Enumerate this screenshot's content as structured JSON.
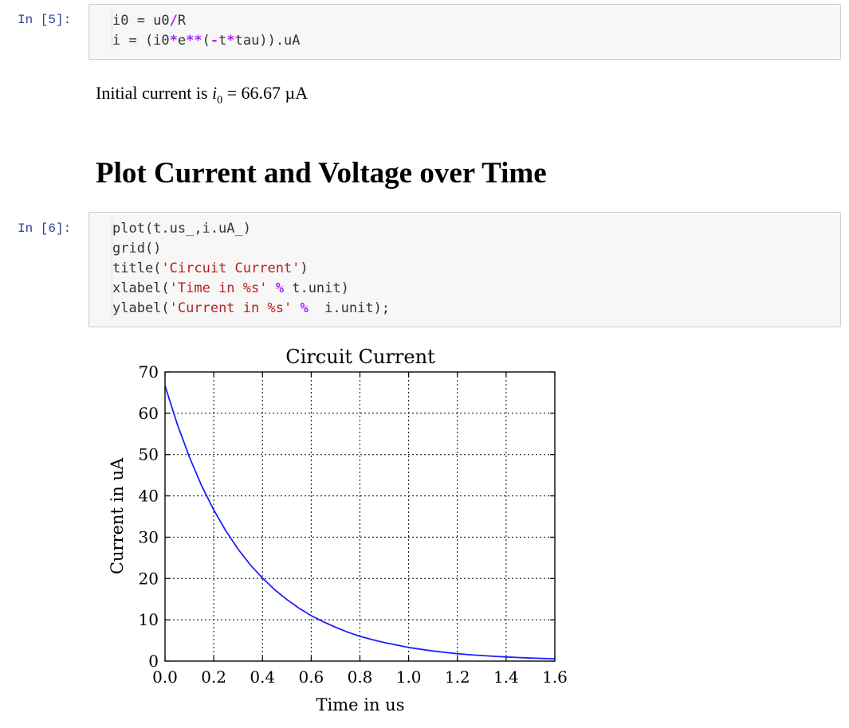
{
  "cells": [
    {
      "prompt": "In [5]:",
      "code_lines": [
        {
          "segments": [
            {
              "t": "i0 = u0",
              "c": ""
            },
            {
              "t": "/",
              "c": "tok-op"
            },
            {
              "t": "R",
              "c": ""
            }
          ]
        },
        {
          "segments": [
            {
              "t": "i = (i0",
              "c": ""
            },
            {
              "t": "*",
              "c": "tok-op"
            },
            {
              "t": "e",
              "c": ""
            },
            {
              "t": "**",
              "c": "tok-op"
            },
            {
              "t": "(",
              "c": ""
            },
            {
              "t": "-",
              "c": "tok-op"
            },
            {
              "t": "t",
              "c": ""
            },
            {
              "t": "*",
              "c": "tok-op"
            },
            {
              "t": "tau)).uA",
              "c": ""
            }
          ]
        }
      ]
    },
    {
      "prompt": "In [6]:",
      "code_lines": [
        {
          "segments": [
            {
              "t": "plot(t.us_,i.uA_)",
              "c": ""
            }
          ]
        },
        {
          "segments": [
            {
              "t": "grid()",
              "c": ""
            }
          ]
        },
        {
          "segments": [
            {
              "t": "title(",
              "c": ""
            },
            {
              "t": "'Circuit Current'",
              "c": "tok-str"
            },
            {
              "t": ")",
              "c": ""
            }
          ]
        },
        {
          "segments": [
            {
              "t": "xlabel(",
              "c": ""
            },
            {
              "t": "'Time in %s'",
              "c": "tok-str"
            },
            {
              "t": " ",
              "c": ""
            },
            {
              "t": "%",
              "c": "tok-mag"
            },
            {
              "t": " t.unit)",
              "c": ""
            }
          ]
        },
        {
          "segments": [
            {
              "t": "ylabel(",
              "c": ""
            },
            {
              "t": "'Current in %s'",
              "c": "tok-str"
            },
            {
              "t": " ",
              "c": ""
            },
            {
              "t": "%",
              "c": "tok-mag"
            },
            {
              "t": "  i.unit);",
              "c": ""
            }
          ]
        }
      ]
    }
  ],
  "output": {
    "prefix": "Initial current is ",
    "var": "i",
    "sub": "0",
    "suffix": " = 66.67 µA"
  },
  "heading": "Plot Current and Voltage over Time",
  "chart_data": {
    "type": "line",
    "title": "Circuit Current",
    "xlabel": "Time in us",
    "ylabel": "Current in uA",
    "xlim": [
      0.0,
      1.6
    ],
    "ylim": [
      0,
      70
    ],
    "xticks": [
      "0.0",
      "0.2",
      "0.4",
      "0.6",
      "0.8",
      "1.0",
      "1.2",
      "1.4",
      "1.6"
    ],
    "yticks": [
      "0",
      "10",
      "20",
      "30",
      "40",
      "50",
      "60",
      "70"
    ],
    "grid": true,
    "color": "#1f1fff",
    "series": [
      {
        "x": [
          0.0,
          0.05,
          0.1,
          0.15,
          0.2,
          0.25,
          0.3,
          0.35,
          0.4,
          0.45,
          0.5,
          0.55,
          0.6,
          0.65,
          0.7,
          0.75,
          0.8,
          0.85,
          0.9,
          0.95,
          1.0,
          1.05,
          1.1,
          1.15,
          1.2,
          1.25,
          1.3,
          1.35,
          1.4,
          1.45,
          1.5,
          1.55,
          1.6
        ],
        "y": [
          66.67,
          57.4,
          49.4,
          42.5,
          36.6,
          31.5,
          27.1,
          23.3,
          20.1,
          17.3,
          14.9,
          12.8,
          11.0,
          9.5,
          8.2,
          7.0,
          6.0,
          5.2,
          4.5,
          3.9,
          3.3,
          2.85,
          2.45,
          2.1,
          1.8,
          1.55,
          1.35,
          1.15,
          1.0,
          0.86,
          0.74,
          0.64,
          0.55
        ]
      }
    ]
  }
}
